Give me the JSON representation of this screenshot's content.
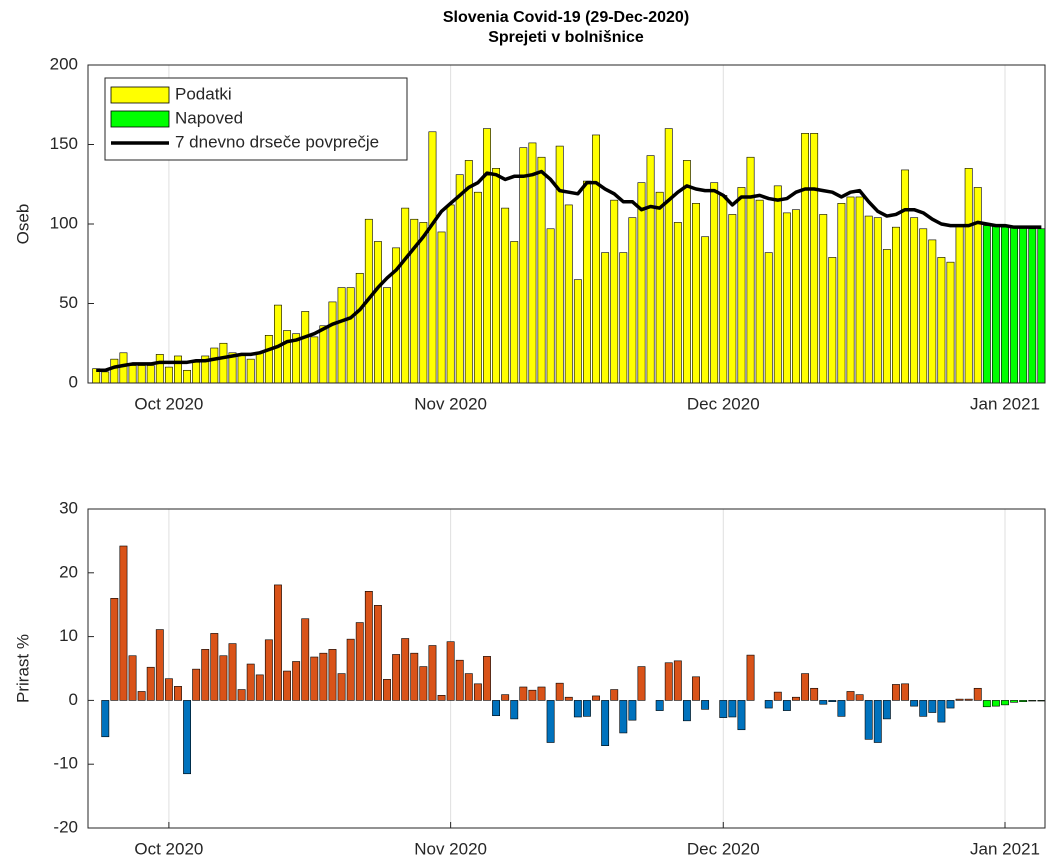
{
  "chart_data": [
    {
      "type": "bar",
      "title": "Slovenia Covid-19 (29-Dec-2020)",
      "subtitle": "Sprejeti v bolnišnice",
      "ylabel": "Oseb",
      "xlim": [
        -8.9,
        96.4
      ],
      "xticks": [
        {
          "value": 0,
          "label": "Oct 2020"
        },
        {
          "value": 31,
          "label": "Nov 2020"
        },
        {
          "value": 61,
          "label": "Dec 2020"
        },
        {
          "value": 92,
          "label": "Jan 2021"
        }
      ],
      "ylim": [
        0,
        200
      ],
      "yticks": [
        0,
        50,
        100,
        150,
        200
      ],
      "xgrid": true,
      "legend": "top-left",
      "series": [
        {
          "name": "Podatki",
          "type": "bar",
          "color": "#ffff00",
          "x": [
            -8,
            -7,
            -6,
            -5,
            -4,
            -3,
            -2,
            -1,
            0,
            1,
            2,
            3,
            4,
            5,
            6,
            7,
            8,
            9,
            10,
            11,
            12,
            13,
            14,
            15,
            16,
            17,
            18,
            19,
            20,
            21,
            22,
            23,
            24,
            25,
            26,
            27,
            28,
            29,
            30,
            31,
            32,
            33,
            34,
            35,
            36,
            37,
            38,
            39,
            40,
            41,
            42,
            43,
            44,
            45,
            46,
            47,
            48,
            49,
            50,
            51,
            52,
            53,
            54,
            55,
            56,
            57,
            58,
            59,
            60,
            61,
            62,
            63,
            64,
            65,
            66,
            67,
            68,
            69,
            70,
            71,
            72,
            73,
            74,
            75,
            76,
            77,
            78,
            79,
            80,
            81,
            82,
            83,
            84,
            85,
            86,
            87,
            88,
            89
          ],
          "values": [
            9,
            7,
            15,
            19,
            11,
            11,
            11,
            18,
            10,
            17,
            8,
            13,
            17,
            22,
            25,
            19,
            18,
            15,
            19,
            30,
            49,
            33,
            31,
            45,
            29,
            36,
            51,
            60,
            60,
            69,
            103,
            89,
            60,
            85,
            110,
            103,
            101,
            158,
            95,
            112,
            131,
            140,
            120,
            160,
            135,
            110,
            89,
            148,
            151,
            142,
            97,
            149,
            112,
            65,
            127,
            156,
            82,
            115,
            82,
            104,
            126,
            143,
            120,
            160,
            101,
            140,
            113,
            92,
            126,
            118,
            106,
            123,
            142,
            115,
            82,
            124,
            107,
            109,
            157,
            157,
            106,
            79,
            113,
            117,
            117,
            105,
            104,
            84,
            98,
            134,
            104,
            97,
            90,
            79,
            76,
            99,
            135,
            123
          ]
        },
        {
          "name": "Napoved",
          "type": "bar",
          "color": "#00ff00",
          "x": [
            90,
            91,
            92,
            93,
            94,
            95,
            96
          ],
          "values": [
            99,
            99,
            98,
            98,
            98,
            97,
            97
          ]
        },
        {
          "name": "7 dnevno drseče povprečje",
          "type": "line",
          "color": "#000000",
          "x": [
            -8,
            -7,
            -6,
            -5,
            -4,
            -3,
            -2,
            -1,
            0,
            1,
            2,
            3,
            4,
            5,
            6,
            7,
            8,
            9,
            10,
            11,
            12,
            13,
            14,
            15,
            16,
            17,
            18,
            19,
            20,
            21,
            22,
            23,
            24,
            25,
            26,
            27,
            28,
            29,
            30,
            31,
            32,
            33,
            34,
            35,
            36,
            37,
            38,
            39,
            40,
            41,
            42,
            43,
            44,
            45,
            46,
            47,
            48,
            49,
            50,
            51,
            52,
            53,
            54,
            55,
            56,
            57,
            58,
            59,
            60,
            61,
            62,
            63,
            64,
            65,
            66,
            67,
            68,
            69,
            70,
            71,
            72,
            73,
            74,
            75,
            76,
            77,
            78,
            79,
            80,
            81,
            82,
            83,
            84,
            85,
            86,
            87,
            88,
            89,
            90,
            91,
            92,
            93,
            94,
            95,
            96
          ],
          "values": [
            8,
            8,
            10,
            11,
            12,
            12,
            12,
            13,
            13,
            13,
            13,
            14,
            14,
            15,
            16,
            17,
            18,
            18,
            19,
            21,
            23,
            26,
            27,
            29,
            31,
            34,
            37,
            39,
            41,
            46,
            53,
            60,
            66,
            71,
            78,
            85,
            92,
            100,
            108,
            113,
            118,
            123,
            126,
            132,
            131,
            128,
            130,
            130,
            131,
            133,
            128,
            121,
            120,
            119,
            126,
            126,
            122,
            119,
            114,
            114,
            109,
            111,
            110,
            115,
            120,
            124,
            122,
            121,
            121,
            118,
            112,
            117,
            117,
            118,
            116,
            115,
            116,
            120,
            122,
            122,
            121,
            120,
            117,
            120,
            121,
            114,
            108,
            105,
            106,
            109,
            109,
            107,
            103,
            100,
            99,
            99,
            99,
            101,
            100,
            99,
            99,
            98,
            98,
            98,
            98
          ]
        }
      ]
    },
    {
      "type": "bar",
      "ylabel": "Prirast %",
      "xlim": [
        -8.9,
        96.4
      ],
      "xticks": [
        {
          "value": 0,
          "label": "Oct 2020"
        },
        {
          "value": 31,
          "label": "Nov 2020"
        },
        {
          "value": 61,
          "label": "Dec 2020"
        },
        {
          "value": 92,
          "label": "Jan 2021"
        }
      ],
      "ylim": [
        -20,
        30
      ],
      "yticks": [
        -20,
        -10,
        0,
        10,
        20,
        30
      ],
      "xgrid": true,
      "series": [
        {
          "type": "bar",
          "color": "#d95319",
          "negative_color": "#0072bd",
          "x": [
            -7,
            -6,
            -5,
            -4,
            -3,
            -2,
            -1,
            0,
            1,
            2,
            3,
            4,
            5,
            6,
            7,
            8,
            9,
            10,
            11,
            12,
            13,
            14,
            15,
            16,
            17,
            18,
            19,
            20,
            21,
            22,
            23,
            24,
            25,
            26,
            27,
            28,
            29,
            30,
            31,
            32,
            33,
            34,
            35,
            36,
            37,
            38,
            39,
            40,
            41,
            42,
            43,
            44,
            45,
            46,
            47,
            48,
            49,
            50,
            51,
            52,
            53,
            54,
            55,
            56,
            57,
            58,
            59,
            60,
            61,
            62,
            63,
            64,
            65,
            66,
            67,
            68,
            69,
            70,
            71,
            72,
            73,
            74,
            75,
            76,
            77,
            78,
            79,
            80,
            81,
            82,
            83,
            84,
            85,
            86,
            87,
            88,
            89
          ],
          "values": [
            -5.7,
            16,
            24.2,
            7,
            1.4,
            5.2,
            11.1,
            3.4,
            2.2,
            -11.5,
            4.9,
            8,
            10.5,
            7,
            8.9,
            1.7,
            5.7,
            4,
            9.5,
            18.1,
            4.6,
            6.1,
            12.8,
            6.8,
            7.4,
            8,
            4.2,
            9.6,
            12.2,
            17.1,
            14.9,
            3.3,
            7.2,
            9.7,
            7.4,
            5.3,
            8.6,
            0.8,
            9.2,
            6.3,
            4.2,
            2.6,
            6.9,
            -2.4,
            0.9,
            -2.9,
            2.1,
            1.6,
            2.1,
            -6.6,
            2.7,
            0.5,
            -2.6,
            -2.5,
            0.7,
            -7.1,
            1.7,
            -5.1,
            -3.1,
            5.3,
            0,
            -1.6,
            5.9,
            6.2,
            -3.2,
            3.7,
            -1.4,
            0,
            -2.7,
            -2.6,
            -4.6,
            7.1,
            0,
            -1.2,
            1.3,
            -1.6,
            0.5,
            4.2,
            1.9,
            -0.6,
            -0.2,
            -2.5,
            1.4,
            0.9,
            -6.1,
            -6.6,
            -2.9,
            2.5,
            2.6,
            -0.9,
            -2.5,
            -1.9,
            -3.4,
            -1.2,
            0.2,
            0.2,
            1.9
          ]
        },
        {
          "type": "bar",
          "color": "#00ff00",
          "x": [
            90,
            91,
            92,
            93,
            94,
            95,
            96
          ],
          "values": [
            -1.0,
            -0.9,
            -0.7,
            -0.3,
            -0.2,
            -0.1,
            -0.1
          ]
        }
      ]
    }
  ]
}
